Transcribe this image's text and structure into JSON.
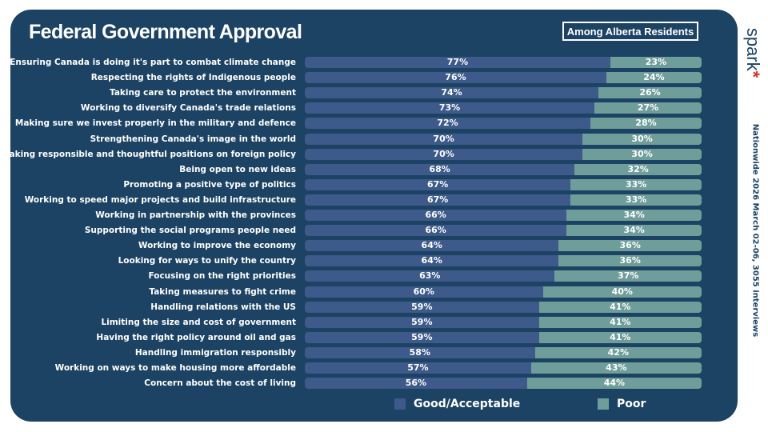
{
  "title": "Federal Government Approval",
  "subset": "Among Alberta Residents",
  "side_note": "Nationwide 2026 March 02-06, 3055 interviews",
  "logo": {
    "text": "spark",
    "mark": "*"
  },
  "colors": {
    "good": "#3d5a8a",
    "poor": "#6f9d99",
    "background": "#1c4264"
  },
  "chart_data": {
    "type": "bar",
    "orientation": "horizontal",
    "stacked": true,
    "title": "Federal Government Approval",
    "subtitle": "Among Alberta Residents",
    "legend_placement": "bottom",
    "categories": [
      "Ensuring Canada is doing it's part to combat climate change",
      "Respecting the rights of Indigenous people",
      "Taking care to protect the environment",
      "Working to diversify Canada's trade relations",
      "Making sure we invest properly in the military and defence",
      "Strengthening Canada's image in the world",
      "Taking responsible and thoughtful positions on foreign policy",
      "Being open to new ideas",
      "Promoting a positive type of politics",
      "Working to speed major projects and build infrastructure",
      "Working in partnership with the provinces",
      "Supporting the social programs people need",
      "Working to improve the economy",
      "Looking for ways to unify the country",
      "Focusing on the right priorities",
      "Taking measures to fight crime",
      "Handling relations with the US",
      "Limiting the size and cost of government",
      "Having the right policy around oil and gas",
      "Handling immigration responsibly",
      "Working on ways to make housing more affordable",
      "Concern about the cost of living"
    ],
    "series": [
      {
        "name": "Good/Acceptable",
        "values": [
          77,
          76,
          74,
          73,
          72,
          70,
          70,
          68,
          67,
          67,
          66,
          66,
          64,
          64,
          63,
          60,
          59,
          59,
          59,
          58,
          57,
          56
        ]
      },
      {
        "name": "Poor",
        "values": [
          23,
          24,
          26,
          27,
          28,
          30,
          30,
          32,
          33,
          33,
          34,
          34,
          36,
          36,
          37,
          40,
          41,
          41,
          41,
          42,
          43,
          44
        ]
      }
    ],
    "xlim": [
      0,
      100
    ]
  }
}
